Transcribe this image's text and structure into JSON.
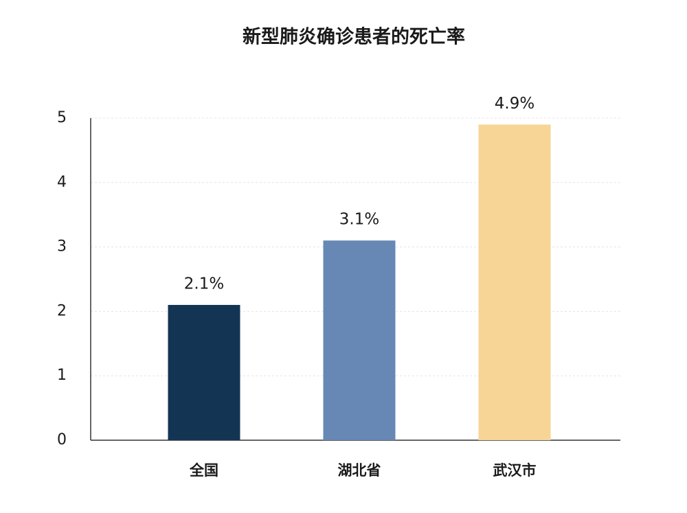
{
  "chart_data": {
    "type": "bar",
    "title": "新型肺炎确诊患者的死亡率",
    "categories": [
      "全国",
      "湖北省",
      "武汉市"
    ],
    "values": [
      2.1,
      3.1,
      4.9
    ],
    "value_labels": [
      "2.1%",
      "3.1%",
      "4.9%"
    ],
    "colors": [
      "#143454",
      "#6788b4",
      "#f6d597"
    ],
    "ylim": [
      0,
      5
    ],
    "yticks": [
      0,
      1,
      2,
      3,
      4,
      5
    ],
    "grid": true
  }
}
